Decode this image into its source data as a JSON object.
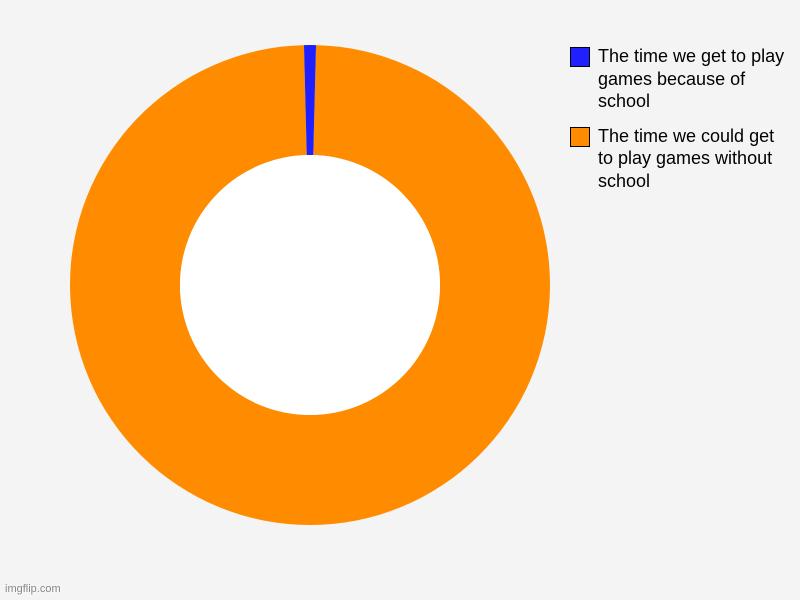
{
  "chart": {
    "type": "donut",
    "background_color": "#f4f4f4",
    "outer_radius": 240,
    "inner_radius": 130,
    "center_fill": "#ffffff",
    "slices": [
      {
        "label": "The time we could get to play games without school",
        "value": 99.2,
        "color": "#ff8c00"
      },
      {
        "label": "The time we get to play games because of school",
        "value": 0.8,
        "color": "#2020ff"
      }
    ],
    "legend_order": [
      1,
      0
    ],
    "legend_fontsize": 18,
    "legend_text_color": "#000000",
    "swatch_border": "#000000"
  },
  "watermark": "imgflip.com"
}
